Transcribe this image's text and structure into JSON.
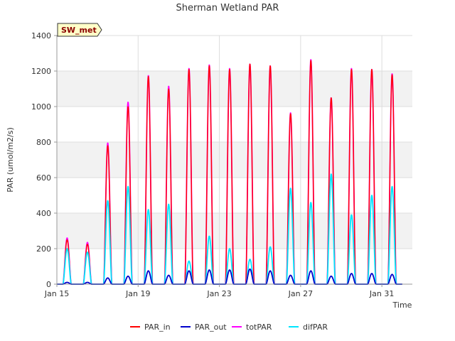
{
  "chart_data": {
    "type": "line",
    "title": "Sherman Wetland PAR",
    "xlabel": "Time",
    "ylabel": "PAR (umol/m2/s)",
    "ylim": [
      0,
      1400
    ],
    "xlim": [
      "2024-01-15",
      "2024-02-01T12:00"
    ],
    "x_ticks": [
      {
        "date": "2024-01-15",
        "label": "Jan 15"
      },
      {
        "date": "2024-01-19",
        "label": "Jan 19"
      },
      {
        "date": "2024-01-23",
        "label": "Jan 23"
      },
      {
        "date": "2024-01-27",
        "label": "Jan 27"
      },
      {
        "date": "2024-01-31",
        "label": "Jan 31"
      }
    ],
    "y_ticks": [
      0,
      200,
      400,
      600,
      800,
      1000,
      1200,
      1400
    ],
    "grid": true,
    "background_bands": true,
    "legend_position": "bottom",
    "tag": "SW_met",
    "days": [
      "2024-01-15",
      "2024-01-16",
      "2024-01-17",
      "2024-01-18",
      "2024-01-19",
      "2024-01-20",
      "2024-01-21",
      "2024-01-22",
      "2024-01-23",
      "2024-01-24",
      "2024-01-25",
      "2024-01-26",
      "2024-01-27",
      "2024-01-28",
      "2024-01-29",
      "2024-01-30",
      "2024-01-31",
      "2024-02-01"
    ],
    "series": [
      {
        "name": "PAR_in",
        "color": "#ff0000",
        "daily_peaks": [
          250,
          225,
          780,
          1000,
          1170,
          1100,
          1210,
          1230,
          1210,
          1240,
          1230,
          960,
          1260,
          1050,
          1210,
          1210,
          1180
        ]
      },
      {
        "name": "PAR_out",
        "color": "#0000cc",
        "daily_peaks": [
          10,
          10,
          35,
          45,
          75,
          50,
          75,
          80,
          80,
          85,
          75,
          50,
          75,
          45,
          60,
          60,
          55
        ]
      },
      {
        "name": "totPAR",
        "color": "#ff00ff",
        "daily_peaks": [
          260,
          235,
          795,
          1025,
          1175,
          1115,
          1215,
          1235,
          1215,
          1240,
          1230,
          965,
          1265,
          1050,
          1215,
          1210,
          1185
        ]
      },
      {
        "name": "difPAR",
        "color": "#00e5ff",
        "daily_peaks": [
          200,
          180,
          470,
          550,
          420,
          450,
          130,
          270,
          200,
          140,
          210,
          540,
          460,
          620,
          390,
          500,
          550
        ]
      }
    ]
  }
}
